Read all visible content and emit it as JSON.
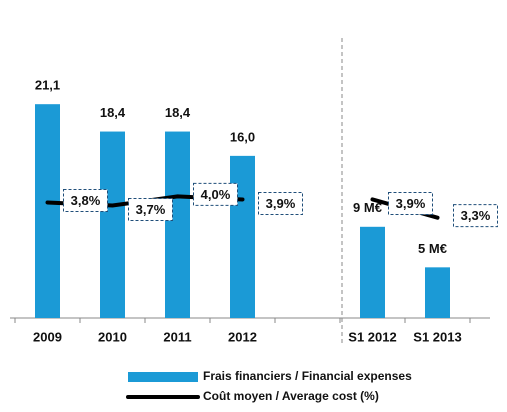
{
  "chart_data": {
    "type": "bar-line",
    "categories": [
      "2009",
      "2010",
      "2011",
      "2012",
      null,
      "S1 2012",
      "S1 2013"
    ],
    "ylim": [
      0,
      30
    ],
    "y2lim": [
      0,
      10
    ],
    "series": [
      {
        "name": "Frais financiers / Financial expenses",
        "type": "bar",
        "color": "#1b9ad6",
        "values": [
          21.1,
          18.4,
          18.4,
          16.0,
          null,
          9,
          5
        ],
        "value_labels": [
          "21,1",
          "18,4",
          "18,4",
          "16,0",
          null,
          "9 M€",
          "5 M€"
        ]
      },
      {
        "name": "Coût moyen / Average cost (%)",
        "type": "line",
        "color": "#000000",
        "axis": "y2",
        "values": [
          3.8,
          3.7,
          4.0,
          3.9,
          null,
          3.9,
          3.3
        ],
        "value_labels": [
          "3,8%",
          "3,7%",
          "4,0%",
          "3,9%",
          null,
          "3,9%",
          "3,3%"
        ]
      }
    ]
  }
}
